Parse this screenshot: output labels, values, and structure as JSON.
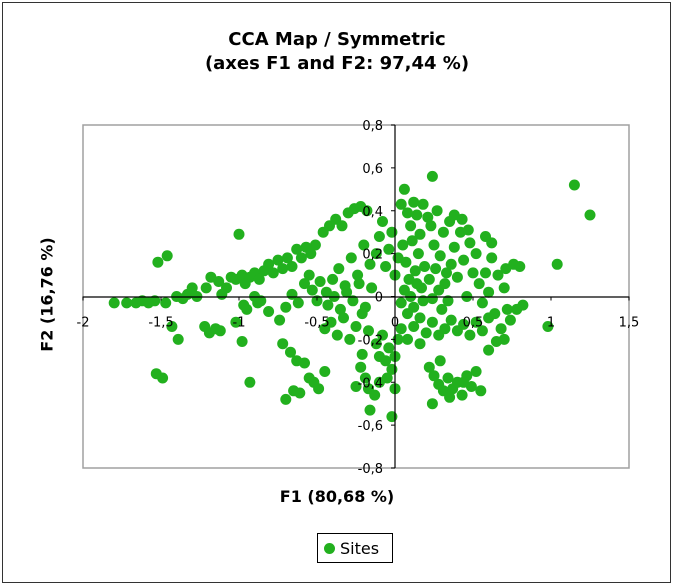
{
  "chart_data": {
    "type": "scatter",
    "title": "CCA Map / Symmetric",
    "subtitle": "(axes F1 and F2: 97,44 %)",
    "xlabel": "F1 (80,68 %)",
    "ylabel": "F2 (16,76 %)",
    "xlim": [
      -2,
      1.5
    ],
    "ylim": [
      -0.8,
      0.8
    ],
    "x_ticks": [
      "-2",
      "-1,5",
      "-1",
      "-0,5",
      "0",
      "0,5",
      "1",
      "1,5"
    ],
    "y_ticks": [
      "-0,8",
      "-0,6",
      "-0,4",
      "-0,2",
      "0",
      "0,2",
      "0,4",
      "0,6",
      "0,8"
    ],
    "grid": false,
    "legend_position": "bottom",
    "series": [
      {
        "name": "Sites",
        "color": "#22b01e",
        "points": [
          [
            -1.8,
            -0.03
          ],
          [
            -1.72,
            -0.03
          ],
          [
            -1.66,
            -0.03
          ],
          [
            -1.62,
            -0.02
          ],
          [
            -1.58,
            -0.03
          ],
          [
            -1.54,
            -0.02
          ],
          [
            -1.47,
            -0.03
          ],
          [
            -1.4,
            0.0
          ],
          [
            -1.36,
            -0.01
          ],
          [
            -1.33,
            0.01
          ],
          [
            -1.3,
            0.04
          ],
          [
            -1.27,
            0.0
          ],
          [
            -1.52,
            0.16
          ],
          [
            -1.46,
            0.19
          ],
          [
            -1.0,
            0.29
          ],
          [
            -1.43,
            -0.14
          ],
          [
            -1.39,
            -0.2
          ],
          [
            -1.53,
            -0.36
          ],
          [
            -1.49,
            -0.38
          ],
          [
            -0.93,
            -0.4
          ],
          [
            -1.22,
            -0.14
          ],
          [
            -1.19,
            -0.17
          ],
          [
            -1.15,
            -0.15
          ],
          [
            -1.12,
            -0.16
          ],
          [
            -1.02,
            -0.12
          ],
          [
            -0.98,
            -0.21
          ],
          [
            -1.21,
            0.04
          ],
          [
            -1.18,
            0.09
          ],
          [
            -1.13,
            0.07
          ],
          [
            -1.11,
            0.01
          ],
          [
            -1.08,
            0.04
          ],
          [
            -1.05,
            0.09
          ],
          [
            -1.02,
            0.08
          ],
          [
            -0.98,
            0.1
          ],
          [
            -0.96,
            0.06
          ],
          [
            -0.93,
            0.09
          ],
          [
            -0.9,
            0.11
          ],
          [
            -0.87,
            0.08
          ],
          [
            -0.84,
            0.12
          ],
          [
            -0.81,
            0.15
          ],
          [
            -0.78,
            0.11
          ],
          [
            -0.75,
            0.17
          ],
          [
            -0.72,
            0.13
          ],
          [
            -0.69,
            0.18
          ],
          [
            -0.66,
            0.14
          ],
          [
            -0.63,
            0.22
          ],
          [
            -0.6,
            0.18
          ],
          [
            -0.57,
            0.23
          ],
          [
            -0.54,
            0.2
          ],
          [
            -0.51,
            0.24
          ],
          [
            -0.97,
            -0.04
          ],
          [
            -0.9,
            0.0
          ],
          [
            -0.86,
            -0.02
          ],
          [
            -0.81,
            -0.07
          ],
          [
            -0.74,
            -0.11
          ],
          [
            -0.7,
            -0.05
          ],
          [
            -0.66,
            0.01
          ],
          [
            -0.62,
            -0.03
          ],
          [
            -0.95,
            -0.06
          ],
          [
            -0.88,
            -0.03
          ],
          [
            -0.58,
            0.06
          ],
          [
            -0.55,
            0.1
          ],
          [
            -0.53,
            0.03
          ],
          [
            -0.5,
            -0.02
          ],
          [
            -0.48,
            0.07
          ],
          [
            -0.72,
            -0.22
          ],
          [
            -0.67,
            -0.26
          ],
          [
            -0.63,
            -0.3
          ],
          [
            -0.58,
            -0.31
          ],
          [
            -0.55,
            -0.38
          ],
          [
            -0.52,
            -0.4
          ],
          [
            -0.49,
            -0.43
          ],
          [
            -0.45,
            -0.35
          ],
          [
            -0.61,
            -0.45
          ],
          [
            -0.65,
            -0.44
          ],
          [
            -0.7,
            -0.48
          ],
          [
            -0.46,
            0.3
          ],
          [
            -0.42,
            0.33
          ],
          [
            -0.38,
            0.36
          ],
          [
            -0.34,
            0.33
          ],
          [
            -0.3,
            0.39
          ],
          [
            -0.26,
            0.41
          ],
          [
            -0.22,
            0.42
          ],
          [
            -0.18,
            0.4
          ],
          [
            -0.45,
            -0.15
          ],
          [
            -0.41,
            -0.12
          ],
          [
            -0.37,
            -0.18
          ],
          [
            -0.33,
            -0.1
          ],
          [
            -0.29,
            -0.2
          ],
          [
            -0.25,
            -0.14
          ],
          [
            -0.21,
            -0.08
          ],
          [
            -0.17,
            -0.16
          ],
          [
            -0.44,
            0.02
          ],
          [
            -0.4,
            0.08
          ],
          [
            -0.36,
            0.13
          ],
          [
            -0.32,
            0.05
          ],
          [
            -0.28,
            0.18
          ],
          [
            -0.24,
            0.1
          ],
          [
            -0.2,
            0.24
          ],
          [
            -0.16,
            0.15
          ],
          [
            -0.43,
            -0.04
          ],
          [
            -0.39,
            0.0
          ],
          [
            -0.35,
            -0.06
          ],
          [
            -0.31,
            0.02
          ],
          [
            -0.27,
            -0.02
          ],
          [
            -0.23,
            0.06
          ],
          [
            -0.19,
            -0.05
          ],
          [
            -0.15,
            0.04
          ],
          [
            -0.12,
            0.2
          ],
          [
            -0.1,
            0.28
          ],
          [
            -0.08,
            0.35
          ],
          [
            -0.06,
            0.14
          ],
          [
            -0.04,
            0.22
          ],
          [
            -0.02,
            0.3
          ],
          [
            0.0,
            0.1
          ],
          [
            0.02,
            0.18
          ],
          [
            -0.12,
            -0.22
          ],
          [
            -0.1,
            -0.28
          ],
          [
            -0.08,
            -0.18
          ],
          [
            -0.06,
            -0.3
          ],
          [
            -0.04,
            -0.24
          ],
          [
            -0.02,
            -0.34
          ],
          [
            0.0,
            -0.28
          ],
          [
            0.02,
            -0.2
          ],
          [
            -0.22,
            -0.33
          ],
          [
            -0.19,
            -0.38
          ],
          [
            -0.17,
            -0.43
          ],
          [
            -0.13,
            -0.46
          ],
          [
            -0.1,
            -0.4
          ],
          [
            -0.05,
            -0.38
          ],
          [
            0.0,
            -0.43
          ],
          [
            -0.02,
            -0.56
          ],
          [
            -0.16,
            -0.53
          ],
          [
            -0.25,
            -0.42
          ],
          [
            -0.21,
            -0.27
          ],
          [
            0.04,
            0.43
          ],
          [
            0.06,
            0.5
          ],
          [
            0.08,
            0.39
          ],
          [
            0.1,
            0.33
          ],
          [
            0.12,
            0.44
          ],
          [
            0.14,
            0.38
          ],
          [
            0.16,
            0.29
          ],
          [
            0.18,
            0.43
          ],
          [
            0.05,
            0.24
          ],
          [
            0.07,
            0.16
          ],
          [
            0.09,
            0.08
          ],
          [
            0.11,
            0.26
          ],
          [
            0.13,
            0.12
          ],
          [
            0.15,
            0.2
          ],
          [
            0.17,
            0.04
          ],
          [
            0.19,
            0.14
          ],
          [
            0.04,
            -0.03
          ],
          [
            0.06,
            0.03
          ],
          [
            0.08,
            -0.08
          ],
          [
            0.1,
            0.0
          ],
          [
            0.12,
            -0.05
          ],
          [
            0.14,
            0.06
          ],
          [
            0.16,
            -0.1
          ],
          [
            0.18,
            -0.02
          ],
          [
            0.21,
            0.37
          ],
          [
            0.23,
            0.33
          ],
          [
            0.25,
            0.24
          ],
          [
            0.27,
            0.4
          ],
          [
            0.29,
            0.19
          ],
          [
            0.31,
            0.3
          ],
          [
            0.33,
            0.11
          ],
          [
            0.35,
            0.35
          ],
          [
            0.22,
            0.08
          ],
          [
            0.24,
            -0.01
          ],
          [
            0.26,
            0.13
          ],
          [
            0.28,
            0.03
          ],
          [
            0.3,
            -0.06
          ],
          [
            0.32,
            0.06
          ],
          [
            0.34,
            -0.02
          ],
          [
            0.36,
            0.15
          ],
          [
            0.24,
            0.56
          ],
          [
            0.38,
            0.23
          ],
          [
            0.4,
            0.09
          ],
          [
            0.42,
            0.3
          ],
          [
            0.44,
            0.17
          ],
          [
            0.46,
            0.0
          ],
          [
            0.48,
            0.25
          ],
          [
            0.5,
            0.11
          ],
          [
            0.38,
            0.38
          ],
          [
            0.43,
            0.36
          ],
          [
            0.47,
            0.31
          ],
          [
            0.52,
            0.2
          ],
          [
            0.54,
            0.06
          ],
          [
            0.56,
            -0.03
          ],
          [
            0.58,
            0.11
          ],
          [
            0.6,
            0.02
          ],
          [
            0.04,
            -0.15
          ],
          [
            0.08,
            -0.2
          ],
          [
            0.12,
            -0.14
          ],
          [
            0.16,
            -0.22
          ],
          [
            0.2,
            -0.17
          ],
          [
            0.24,
            -0.12
          ],
          [
            0.28,
            -0.18
          ],
          [
            0.32,
            -0.15
          ],
          [
            0.36,
            -0.11
          ],
          [
            0.4,
            -0.16
          ],
          [
            0.44,
            -0.13
          ],
          [
            0.48,
            -0.18
          ],
          [
            0.52,
            -0.12
          ],
          [
            0.56,
            -0.16
          ],
          [
            0.6,
            -0.1
          ],
          [
            0.64,
            -0.08
          ],
          [
            0.22,
            -0.33
          ],
          [
            0.25,
            -0.37
          ],
          [
            0.28,
            -0.41
          ],
          [
            0.31,
            -0.44
          ],
          [
            0.34,
            -0.38
          ],
          [
            0.37,
            -0.43
          ],
          [
            0.4,
            -0.4
          ],
          [
            0.43,
            -0.46
          ],
          [
            0.46,
            -0.37
          ],
          [
            0.49,
            -0.42
          ],
          [
            0.52,
            -0.35
          ],
          [
            0.55,
            -0.44
          ],
          [
            0.35,
            -0.47
          ],
          [
            0.44,
            -0.4
          ],
          [
            0.24,
            -0.5
          ],
          [
            0.29,
            -0.3
          ],
          [
            0.62,
            0.18
          ],
          [
            0.66,
            0.1
          ],
          [
            0.7,
            0.04
          ],
          [
            0.72,
            -0.06
          ],
          [
            0.68,
            -0.15
          ],
          [
            0.74,
            -0.11
          ],
          [
            0.78,
            -0.06
          ],
          [
            0.65,
            -0.21
          ],
          [
            0.62,
            0.25
          ],
          [
            0.58,
            0.28
          ],
          [
            0.71,
            0.13
          ],
          [
            0.76,
            0.15
          ],
          [
            0.8,
            0.14
          ],
          [
            0.82,
            -0.04
          ],
          [
            0.6,
            -0.25
          ],
          [
            0.7,
            -0.2
          ],
          [
            1.15,
            0.52
          ],
          [
            1.25,
            0.38
          ],
          [
            1.04,
            0.15
          ],
          [
            0.98,
            -0.14
          ]
        ]
      }
    ]
  },
  "legend": {
    "label": "Sites"
  }
}
